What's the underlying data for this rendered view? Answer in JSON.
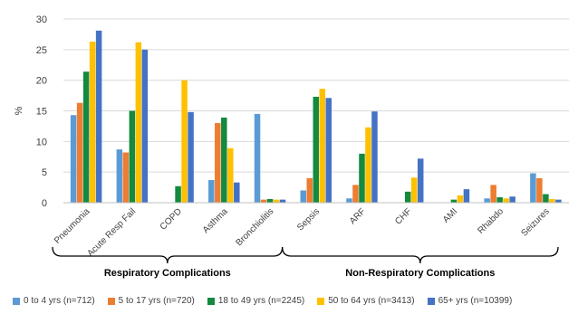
{
  "chart_data": {
    "type": "bar",
    "ylabel": "%",
    "ylim": [
      0,
      30
    ],
    "yticks": [
      0,
      5,
      10,
      15,
      20,
      25,
      30
    ],
    "grid": true,
    "legend_position": "bottom",
    "categories": [
      "Pneumonia",
      "Acute Resp Fail",
      "COPD",
      "Asthma",
      "Bronchiolitis",
      "Sepsis",
      "ARF",
      "CHF",
      "AMI",
      "Rhabdo",
      "Seizures"
    ],
    "groups": [
      {
        "label": "Respiratory Complications",
        "categories": [
          "Pneumonia",
          "Acute Resp Fail",
          "COPD",
          "Asthma",
          "Bronchiolitis"
        ]
      },
      {
        "label": "Non-Respiratory Complications",
        "categories": [
          "Sepsis",
          "ARF",
          "CHF",
          "AMI",
          "Rhabdo",
          "Seizures"
        ]
      }
    ],
    "series": [
      {
        "name": "0 to 4 yrs (n=712)",
        "color": "#5B9BD5",
        "values": [
          14.3,
          8.7,
          0,
          3.7,
          14.5,
          2.0,
          0.7,
          0,
          0,
          0.7,
          4.8
        ]
      },
      {
        "name": "5 to 17 yrs (n=720)",
        "color": "#ED7D31",
        "values": [
          16.3,
          8.2,
          0,
          13.0,
          0.5,
          4.0,
          2.9,
          0,
          0,
          2.9,
          4.0
        ]
      },
      {
        "name": "18 to 49 yrs (n=2245)",
        "color": "#138A3F",
        "values": [
          21.4,
          15.0,
          2.7,
          13.9,
          0.6,
          17.3,
          8.0,
          1.8,
          0.5,
          0.9,
          1.4
        ]
      },
      {
        "name": "50 to 64 yrs (n=3413)",
        "color": "#FFC000",
        "values": [
          26.3,
          26.2,
          20.0,
          8.9,
          0.5,
          18.6,
          12.3,
          4.1,
          1.2,
          0.7,
          0.6
        ]
      },
      {
        "name": "65+ yrs (n=10399)",
        "color": "#4472C4",
        "values": [
          28.1,
          25.0,
          14.8,
          3.3,
          0.5,
          17.1,
          14.9,
          7.2,
          2.2,
          1.0,
          0.5
        ]
      }
    ]
  }
}
